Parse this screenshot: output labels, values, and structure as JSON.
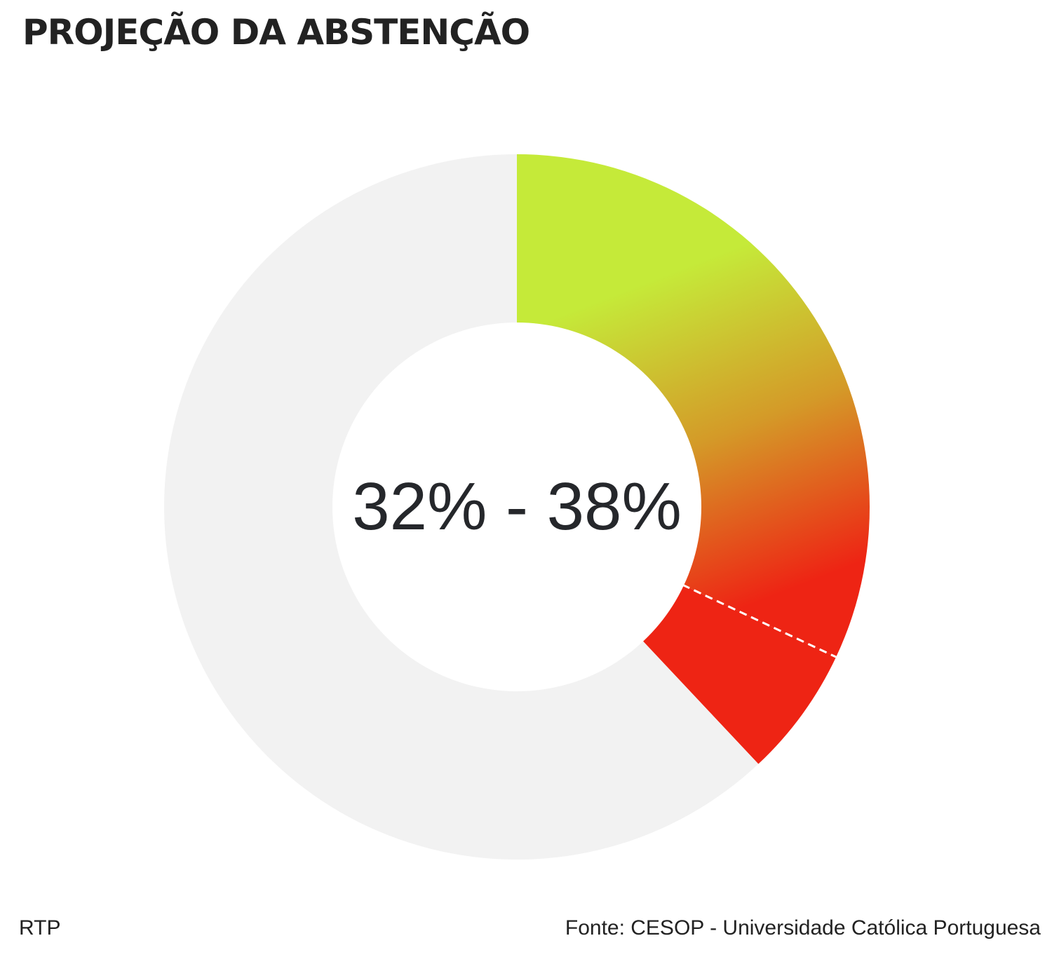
{
  "header": {
    "title": "PROJEÇÃO DA ABSTENÇÃO"
  },
  "chart_data": {
    "type": "pie",
    "variant": "donut",
    "title": "PROJEÇÃO DA ABSTENÇÃO",
    "center_label": "32% - 38%",
    "range": {
      "low": 32,
      "high": 38,
      "unit": "%"
    },
    "total": 100,
    "segments": [
      {
        "value": 32,
        "fill": "gradient"
      },
      {
        "value": 6,
        "fill": "solid"
      },
      {
        "value": 62,
        "fill": "background"
      }
    ],
    "range_marker": {
      "at": 32,
      "style": "dashed"
    }
  },
  "colors": {
    "gradient_start": "#c5ea39",
    "gradient_mid": "#d49a28",
    "gradient_end": "#ee2414",
    "range_fill": "#ee2414",
    "track": "#f2f2f2",
    "marker": "#ffffff"
  },
  "footer": {
    "brand": "RTP",
    "source": "Fonte: CESOP - Universidade Católica Portuguesa"
  }
}
